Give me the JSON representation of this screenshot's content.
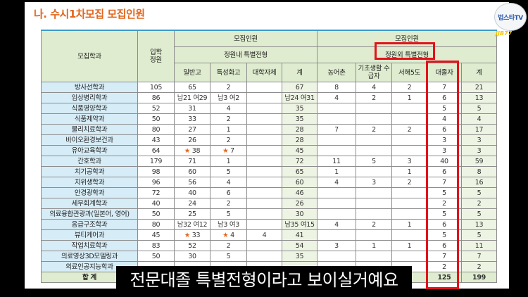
{
  "title": "나. 수시1차모집 모집인원",
  "header": {
    "dept": "모집학과",
    "quota": "입학 정원",
    "recruit": "모집인원",
    "inside": "정원내 특별전형",
    "outside": "정원외 특별전형",
    "cols": [
      "일반고",
      "특성화고",
      "대학자체",
      "계",
      "농어촌",
      "기초생활 수급자",
      "서해5도",
      "대졸자",
      "계"
    ]
  },
  "rows": [
    [
      "방사선학과",
      "105",
      "65",
      "2",
      "",
      "67",
      "8",
      "4",
      "2",
      "7",
      "21"
    ],
    [
      "임상병리학과",
      "86",
      "남21 여29",
      "남3 여2",
      "",
      "남24 여31",
      "4",
      "2",
      "1",
      "6",
      "13"
    ],
    [
      "식품영양학과",
      "52",
      "31",
      "4",
      "",
      "35",
      "",
      "",
      "",
      "5",
      "5"
    ],
    [
      "식품제약과",
      "50",
      "33",
      "2",
      "",
      "35",
      "",
      "",
      "",
      "4",
      "4"
    ],
    [
      "물리치료학과",
      "80",
      "27",
      "1",
      "",
      "28",
      "7",
      "2",
      "2",
      "6",
      "17"
    ],
    [
      "바이오환경보건과",
      "43",
      "26",
      "2",
      "",
      "28",
      "",
      "",
      "",
      "3",
      "3"
    ],
    [
      "유아교육학과",
      "64",
      "★ 38",
      "★ 7",
      "",
      "45",
      "",
      "",
      "",
      "3",
      "3"
    ],
    [
      "간호학과",
      "179",
      "71",
      "1",
      "",
      "72",
      "11",
      "5",
      "3",
      "40",
      "59"
    ],
    [
      "치기공학과",
      "98",
      "60",
      "5",
      "",
      "65",
      "1",
      "",
      "1",
      "6",
      "8"
    ],
    [
      "치위생학과",
      "96",
      "56",
      "4",
      "",
      "60",
      "4",
      "3",
      "2",
      "7",
      "16"
    ],
    [
      "안경광학과",
      "72",
      "40",
      "6",
      "",
      "46",
      "",
      "",
      "",
      "5",
      "5"
    ],
    [
      "세무회계학과",
      "40",
      "24",
      "2",
      "",
      "26",
      "",
      "",
      "",
      "2",
      "2"
    ],
    [
      "의료융합관광과(일본어, 영어)",
      "50",
      "25",
      "5",
      "",
      "30",
      "",
      "",
      "",
      "5",
      "5"
    ],
    [
      "응급구조학과",
      "80",
      "남32 여12",
      "남3 여3",
      "",
      "남35 여15",
      "4",
      "2",
      "1",
      "6",
      "13"
    ],
    [
      "뷰티케어과",
      "45",
      "★ 33",
      "★ 4",
      "4",
      "41",
      "",
      "",
      "",
      "5",
      "5"
    ],
    [
      "작업치료학과",
      "83",
      "52",
      "2",
      "",
      "54",
      "3",
      "1",
      "1",
      "6",
      "11"
    ],
    [
      "의료영상3D모델링과",
      "50",
      "30",
      "5",
      "",
      "35",
      "",
      "",
      "",
      "7",
      "7"
    ],
    [
      "의료인공지능학과",
      "",
      "",
      "",
      "",
      "",
      "",
      "",
      "",
      "2",
      "2"
    ],
    [
      "합 계",
      "",
      "",
      "",
      "",
      "",
      "",
      "",
      "",
      "125",
      "199"
    ]
  ],
  "caption": "전문대졸 특별전형이라고 보이실거예요",
  "logo": "법스타TV",
  "badge": "JJB77",
  "colors": {
    "title": "#e2661d",
    "header": "#dfeccf",
    "dept": "#d6ecf6",
    "highlight": "#e3121a"
  }
}
